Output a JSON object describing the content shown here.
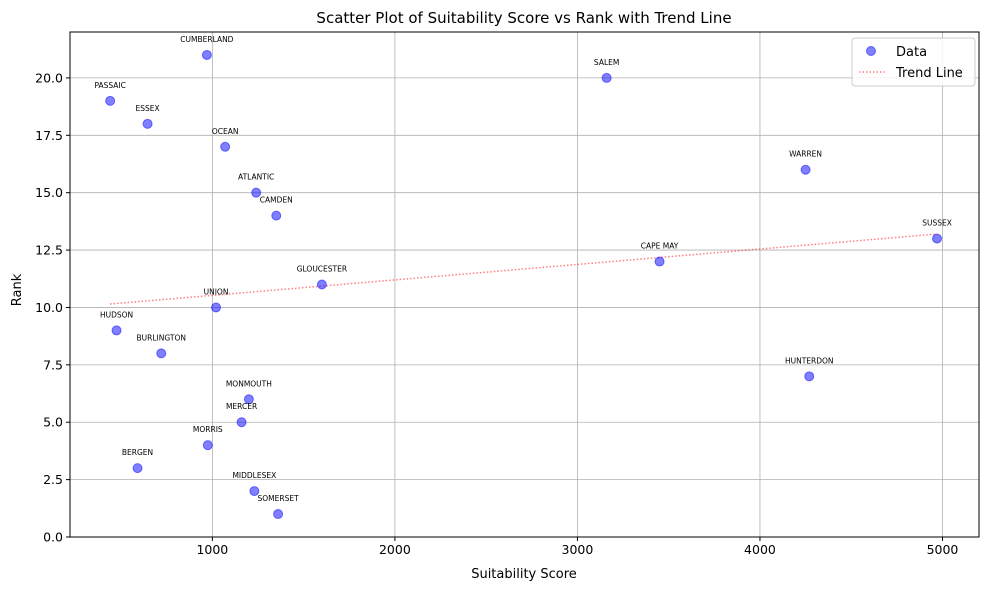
{
  "chart_data": {
    "type": "scatter",
    "title": "Scatter Plot of Suitability Score vs Rank with Trend Line",
    "xlabel": "Suitability Score",
    "ylabel": "Rank",
    "xlim": [
      220,
      5200
    ],
    "ylim": [
      0,
      22
    ],
    "xticks": [
      1000,
      2000,
      3000,
      4000,
      5000
    ],
    "yticks": [
      0.0,
      2.5,
      5.0,
      7.5,
      10.0,
      12.5,
      15.0,
      17.5,
      20.0
    ],
    "grid": true,
    "legend_position": "top-right",
    "point_color": "#0000ff",
    "trend_color": "#ff0000",
    "series": [
      {
        "name": "Data",
        "points": [
          {
            "label": "CUMBERLAND",
            "x": 970,
            "y": 21
          },
          {
            "label": "SALEM",
            "x": 3160,
            "y": 20
          },
          {
            "label": "PASSAIC",
            "x": 440,
            "y": 19
          },
          {
            "label": "ESSEX",
            "x": 645,
            "y": 18
          },
          {
            "label": "OCEAN",
            "x": 1070,
            "y": 17
          },
          {
            "label": "WARREN",
            "x": 4250,
            "y": 16
          },
          {
            "label": "ATLANTIC",
            "x": 1240,
            "y": 15
          },
          {
            "label": "CAMDEN",
            "x": 1350,
            "y": 14
          },
          {
            "label": "SUSSEX",
            "x": 4970,
            "y": 13
          },
          {
            "label": "CAPE MAY",
            "x": 3450,
            "y": 12
          },
          {
            "label": "GLOUCESTER",
            "x": 1600,
            "y": 11
          },
          {
            "label": "UNION",
            "x": 1020,
            "y": 10
          },
          {
            "label": "HUDSON",
            "x": 475,
            "y": 9
          },
          {
            "label": "BURLINGTON",
            "x": 720,
            "y": 8
          },
          {
            "label": "HUNTERDON",
            "x": 4270,
            "y": 7
          },
          {
            "label": "MONMOUTH",
            "x": 1200,
            "y": 6
          },
          {
            "label": "MERCER",
            "x": 1160,
            "y": 5
          },
          {
            "label": "MORRIS",
            "x": 975,
            "y": 4
          },
          {
            "label": "BERGEN",
            "x": 590,
            "y": 3
          },
          {
            "label": "MIDDLESEX",
            "x": 1230,
            "y": 2
          },
          {
            "label": "SOMERSET",
            "x": 1360,
            "y": 1
          }
        ]
      },
      {
        "name": "Trend Line",
        "line": [
          {
            "x": 440,
            "y": 10.15
          },
          {
            "x": 4970,
            "y": 13.2
          }
        ]
      }
    ]
  }
}
